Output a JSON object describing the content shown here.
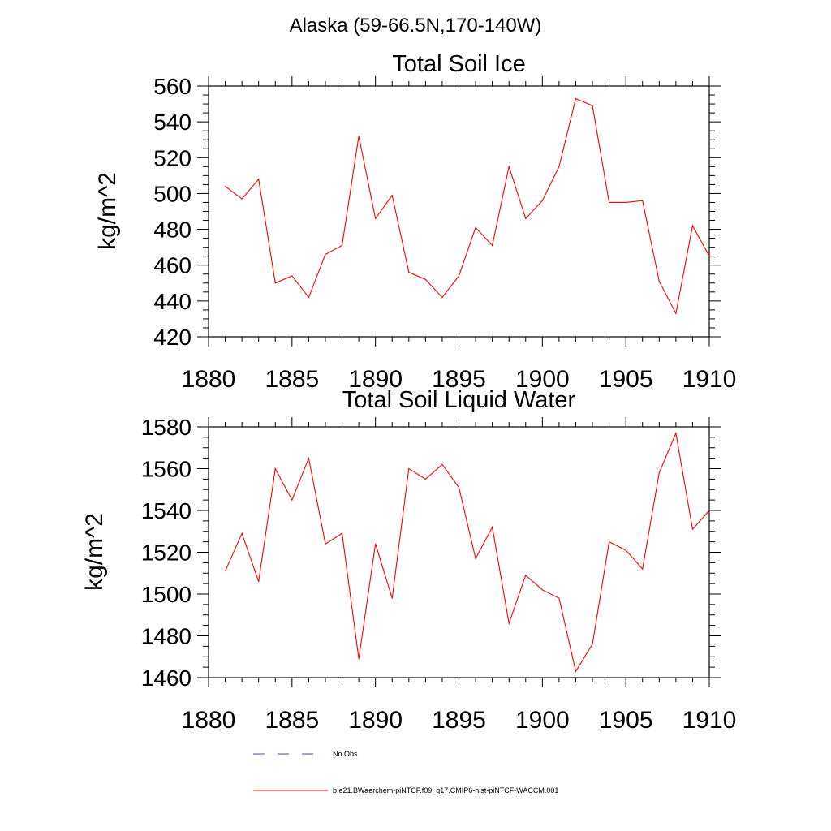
{
  "figure_title": "Alaska (59-66.5N,170-140W)",
  "colors": {
    "model": "#ff0000",
    "obs": "#4b4b9b"
  },
  "legend": {
    "obs_label": "No Obs",
    "model_label": "b.e21.BWaerchem-piNTCF.f09_g17.CMIP6-hist-piNTCF-WACCM.001"
  },
  "chart_data": [
    {
      "type": "line",
      "title": "Total Soil Ice",
      "xlabel": "",
      "ylabel": "kg/m^2",
      "xlim": [
        1880,
        1910
      ],
      "ylim": [
        420,
        560
      ],
      "x_ticks": [
        1880,
        1885,
        1890,
        1895,
        1900,
        1905,
        1910
      ],
      "y_ticks": [
        420,
        440,
        460,
        480,
        500,
        520,
        540,
        560
      ],
      "y_minor_step": 5,
      "x_minor_step": 1,
      "grid": false,
      "x": [
        1881,
        1882,
        1883,
        1884,
        1885,
        1886,
        1887,
        1888,
        1889,
        1890,
        1891,
        1892,
        1893,
        1894,
        1895,
        1896,
        1897,
        1898,
        1899,
        1900,
        1901,
        1902,
        1903,
        1904,
        1905,
        1906,
        1907,
        1908,
        1909,
        1910
      ],
      "series": [
        {
          "values": [
            504,
            497,
            508,
            450,
            454,
            442,
            466,
            471,
            532,
            486,
            499,
            456,
            452,
            442,
            454,
            481,
            471,
            515,
            486,
            496,
            515,
            553,
            549,
            495,
            495,
            496,
            451,
            433,
            482,
            465
          ]
        }
      ]
    },
    {
      "type": "line",
      "title": "Total Soil Liquid Water",
      "xlabel": "",
      "ylabel": "kg/m^2",
      "xlim": [
        1880,
        1910
      ],
      "ylim": [
        1460,
        1580
      ],
      "x_ticks": [
        1880,
        1885,
        1890,
        1895,
        1900,
        1905,
        1910
      ],
      "y_ticks": [
        1460,
        1480,
        1500,
        1520,
        1540,
        1560,
        1580
      ],
      "y_minor_step": 5,
      "x_minor_step": 1,
      "grid": false,
      "x": [
        1881,
        1882,
        1883,
        1884,
        1885,
        1886,
        1887,
        1888,
        1889,
        1890,
        1891,
        1892,
        1893,
        1894,
        1895,
        1896,
        1897,
        1898,
        1899,
        1900,
        1901,
        1902,
        1903,
        1904,
        1905,
        1906,
        1907,
        1908,
        1909,
        1910
      ],
      "series": [
        {
          "values": [
            1511,
            1529,
            1506,
            1560,
            1545,
            1565,
            1524,
            1529,
            1469,
            1524,
            1498,
            1560,
            1555,
            1562,
            1551,
            1517,
            1532,
            1486,
            1509,
            1502,
            1498,
            1463,
            1476,
            1525,
            1521,
            1512,
            1558,
            1577,
            1531,
            1540
          ]
        }
      ]
    }
  ]
}
